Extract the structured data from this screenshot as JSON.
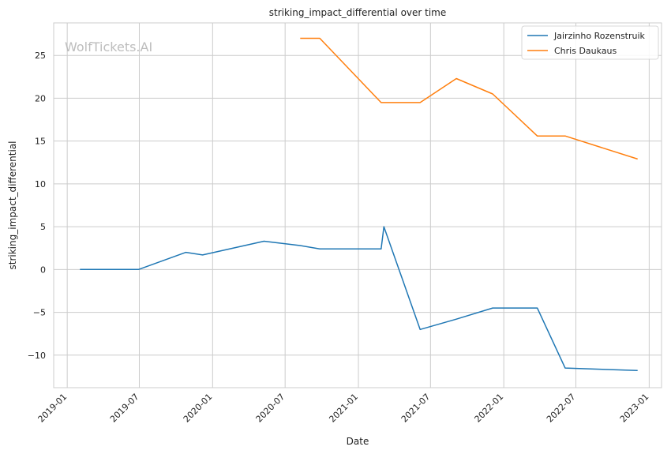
{
  "chart_data": {
    "type": "line",
    "title": "striking_impact_differential over time",
    "xlabel": "Date",
    "ylabel": "striking_impact_differential",
    "watermark": "WolfTickets.AI",
    "xlim": [
      "2018-11-28",
      "2023-02-01"
    ],
    "ylim": [
      -13.8,
      28.8
    ],
    "x_ticks": [
      "2019-01-01",
      "2019-07-01",
      "2020-01-01",
      "2020-07-01",
      "2021-01-01",
      "2021-07-01",
      "2022-01-01",
      "2022-07-01",
      "2023-01-01"
    ],
    "x_tick_labels": [
      "2019-01",
      "2019-07",
      "2020-01",
      "2020-07",
      "2021-01",
      "2021-07",
      "2022-01",
      "2022-07",
      "2023-01"
    ],
    "y_ticks": [
      -10,
      -5,
      0,
      5,
      10,
      15,
      20,
      25
    ],
    "y_tick_labels": [
      "−10",
      "−5",
      "0",
      "5",
      "10",
      "15",
      "20",
      "25"
    ],
    "grid": true,
    "legend_position": "top-right",
    "series": [
      {
        "name": "Jairzinho Rozenstruik",
        "color": "#1f77b4",
        "points": [
          [
            "2019-02-02",
            0.0
          ],
          [
            "2019-06-29",
            0.0
          ],
          [
            "2019-10-26",
            2.0
          ],
          [
            "2019-12-07",
            1.7
          ],
          [
            "2020-05-09",
            3.3
          ],
          [
            "2020-08-08",
            2.8
          ],
          [
            "2020-09-26",
            2.4
          ],
          [
            "2021-02-27",
            2.4
          ],
          [
            "2021-03-06",
            5.0
          ],
          [
            "2021-06-05",
            -7.0
          ],
          [
            "2021-09-04",
            -5.8
          ],
          [
            "2021-12-04",
            -4.5
          ],
          [
            "2022-03-26",
            -4.5
          ],
          [
            "2022-06-04",
            -11.5
          ],
          [
            "2022-12-03",
            -11.8
          ]
        ]
      },
      {
        "name": "Chris Daukaus",
        "color": "#ff7f0e",
        "points": [
          [
            "2020-08-08",
            27.0
          ],
          [
            "2020-09-26",
            27.0
          ],
          [
            "2021-02-27",
            19.5
          ],
          [
            "2021-06-05",
            19.5
          ],
          [
            "2021-09-04",
            22.3
          ],
          [
            "2021-12-04",
            20.5
          ],
          [
            "2022-03-26",
            15.6
          ],
          [
            "2022-06-04",
            15.6
          ],
          [
            "2022-12-03",
            12.9
          ]
        ]
      }
    ]
  }
}
